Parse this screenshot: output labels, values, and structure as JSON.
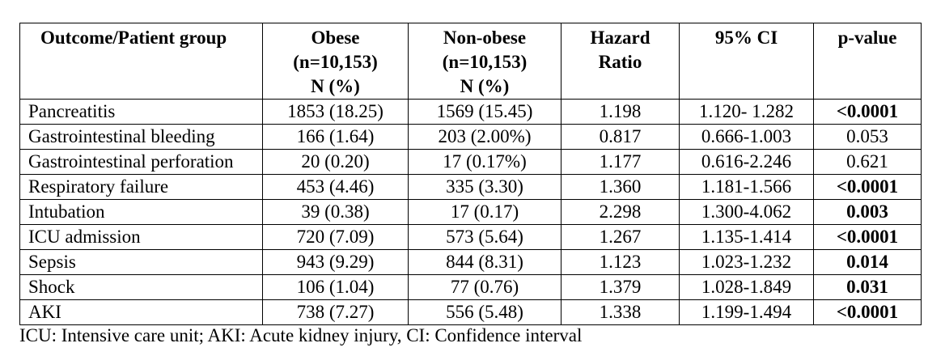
{
  "table": {
    "headers": [
      [
        "Outcome/Patient group"
      ],
      [
        "Obese",
        "(n=10,153)",
        "N (%)"
      ],
      [
        "Non-obese",
        "(n=10,153)",
        "N (%)"
      ],
      [
        "Hazard",
        "Ratio"
      ],
      [
        "95% CI"
      ],
      [
        "p-value"
      ]
    ],
    "rows": [
      {
        "cells": [
          "Pancreatitis",
          "1853 (18.25)",
          "1569 (15.45)",
          "1.198",
          "1.120- 1.282",
          "<0.0001"
        ],
        "p_bold": true
      },
      {
        "cells": [
          "Gastrointestinal bleeding",
          "166 (1.64)",
          "203 (2.00%)",
          "0.817",
          "0.666-1.003",
          "0.053"
        ],
        "p_bold": false
      },
      {
        "cells": [
          "Gastrointestinal perforation",
          "20 (0.20)",
          "17 (0.17%)",
          "1.177",
          "0.616-2.246",
          "0.621"
        ],
        "p_bold": false
      },
      {
        "cells": [
          "Respiratory failure",
          "453 (4.46)",
          "335 (3.30)",
          "1.360",
          "1.181-1.566",
          "<0.0001"
        ],
        "p_bold": true
      },
      {
        "cells": [
          "Intubation",
          "39 (0.38)",
          "17 (0.17)",
          "2.298",
          "1.300-4.062",
          "0.003"
        ],
        "p_bold": true
      },
      {
        "cells": [
          "ICU admission",
          "720 (7.09)",
          "573 (5.64)",
          "1.267",
          "1.135-1.414",
          "<0.0001"
        ],
        "p_bold": true
      },
      {
        "cells": [
          "Sepsis",
          "943 (9.29)",
          "844 (8.31)",
          "1.123",
          "1.023-1.232",
          "0.014"
        ],
        "p_bold": true
      },
      {
        "cells": [
          "Shock",
          "106 (1.04)",
          "77 (0.76)",
          "1.379",
          "1.028-1.849",
          "0.031"
        ],
        "p_bold": true
      },
      {
        "cells": [
          "AKI",
          "738 (7.27)",
          "556 (5.48)",
          "1.338",
          "1.199-1.494",
          "<0.0001"
        ],
        "p_bold": true
      }
    ]
  },
  "footnote": "ICU: Intensive care unit; AKI: Acute kidney injury, CI: Confidence interval"
}
